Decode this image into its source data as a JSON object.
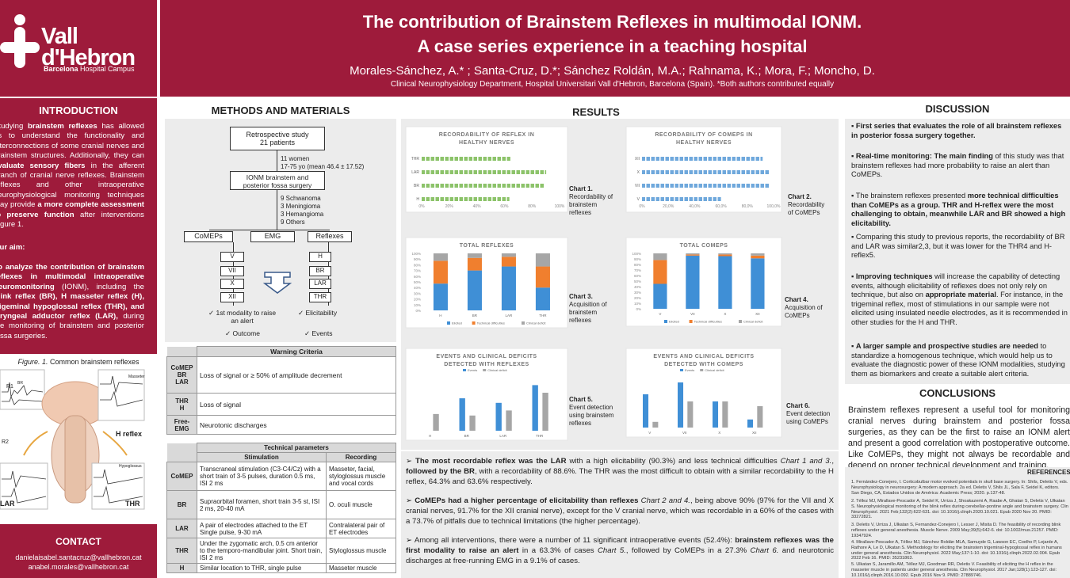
{
  "header": {
    "logo": {
      "line1": "Vall",
      "line2": "d'Hebron",
      "line3_bold": "Barcelona",
      "line3": " Hospital Campus"
    },
    "title_line1": "The contribution of Brainstem Reflexes in multimodal IONM.",
    "title_line2": "A case series experience in a teaching hospital",
    "authors": "Morales-Sánchez, A.* ; Santa-Cruz, D.*; Sánchez Roldán, M.A.; Rahnama, K.; Mora, F.; Moncho, D.",
    "affiliation": "Clinical Neurophysiology Department, Hospital Universitari Vall d'Hebron, Barcelona (Spain). *Both  authors contributed equally"
  },
  "intro": {
    "heading": "INTRODUCTION",
    "p1_a": "Studying ",
    "p1_b": "brainstem reflexes",
    "p1_c": " has allowed us to understand the functionality and interconnections of some cranial nerves and brainstem structures. Additionally, they can ",
    "p1_d": "evaluate sensory fibers",
    "p1_e": " in the afferent branch of cranial nerve reflexes. Brainstem reflexes and other intraoperative neurophysiological monitoring techniques may provide ",
    "p1_f": "a more complete assessment to preserve function",
    "p1_g": " after interventions Figure 1.",
    "aim_label": "Our aim:",
    "aim_a": "To analyze the contribution of brainstem reflexes in multimodal intraoperative neuromonitoring",
    "aim_b": " (IONM), including the ",
    "aim_c": "blink reflex (BR), H masseter reflex (H), trigeminal hypoglossal reflex (THR), and laryngeal adductor reflex (LAR),",
    "aim_d": " during the monitoring of brainstem and posterior fossa surgeries.",
    "fig_caption_a": "Figure. 1.",
    "fig_caption_b": " Common brainstem reflexes",
    "fig_labels": {
      "br": "BR",
      "h": "H reflex",
      "lar": "LAR",
      "thr": "THR",
      "r1": "R1",
      "r2": "R2",
      "masseter": "Masseter",
      "hypoglossus": "Hypoglossus"
    }
  },
  "contact": {
    "heading": "CONTACT",
    "email1": "danielaisabel.santacruz@vallhebron.cat",
    "email2": "anabel.morales@vallhebron.cat"
  },
  "methods": {
    "heading": "METHODS AND MATERIALS",
    "retro": "Retrospective study",
    "patients": "21 patients",
    "women": "11 women",
    "age": "17-75 yo (mean 46.4 ± 17.52)",
    "ionm": "IONM brainstem and",
    "ionm2": "posterior fossa surgery",
    "schwannoma": "9 Schwanoma",
    "meningioma": "3 Meningioma",
    "hemangioma": "3 Hemangioma",
    "others": "9 Others",
    "comeps": "CoMEPs",
    "emg": "EMG",
    "reflexes": "Reflexes",
    "nerves": [
      "V",
      "VII",
      "X",
      "XII"
    ],
    "reflex_list": [
      "H",
      "BR",
      "LAR",
      "THR"
    ],
    "bullet1": "✓ 1st modality to raise",
    "bullet1b": "an alert",
    "bullet2": "✓ Elicitability",
    "bullet3": "✓ Outcome",
    "bullet4": "✓ Events"
  },
  "warning_table": {
    "header": "Warning Criteria",
    "rows": [
      {
        "label": "CoMEP\nBR\nLAR",
        "label1": "CoMEP",
        "label2": "BR",
        "label3": "LAR",
        "text": "Loss of signal or ≥ 50% of amplitude decrement"
      },
      {
        "label1": "THR",
        "label2": "H",
        "text": "Loss of signal"
      },
      {
        "label1": "Free-",
        "label2": "EMG",
        "text": "Neurotonic discharges"
      }
    ]
  },
  "tech_table": {
    "header": "Technical parameters",
    "col_stim": "Stimulation",
    "col_rec": "Recording",
    "rows": [
      {
        "label": "CoMEP",
        "stim": "Transcraneal stimulation (C3-C4/Cz) with a short train of 3-5 pulses, duration 0.5 ms, ISI 2 ms",
        "rec": "Masseter, facial, styloglossus muscle and vocal cords"
      },
      {
        "label": "BR",
        "stim": "Supraorbital foramen, short train 3-5 st, ISI 2 ms, 20-40 mA",
        "rec": "O. oculi muscle"
      },
      {
        "label": "LAR",
        "stim": "A pair of electrodes attached to the ET Single pulse, 9-30 mA",
        "rec": "Contralateral pair of ET electrodes"
      },
      {
        "label": "THR",
        "stim": "Under the zygomatic arch, 0.5 cm anterior to the temporo-mandibular joint. Short train, ISI 2 ms",
        "rec": "Styloglossus muscle"
      },
      {
        "label": "H",
        "stim": "Similar location to THR, single pulse",
        "rec": "Masseter muscle"
      }
    ]
  },
  "results": {
    "heading": "RESULTS",
    "captions": {
      "c1": [
        "Chart 1.",
        "Recordability",
        "of reflex in",
        "healthy nerves"
      ],
      "c2": [
        "Chart 2.",
        "Recordability",
        "of CoMEPs"
      ],
      "c3": [
        "Chart 3.",
        "Acquisition of",
        "brainstem",
        "reflexes"
      ],
      "c4": [
        "Chart 4.",
        "Acquisition of",
        "CoMEPs"
      ],
      "c5": [
        "Chart 5.",
        "Event detection",
        "using brainstem",
        "reflexes"
      ],
      "c6": [
        "Chart 6.",
        "Event detection",
        "using CoMEPs"
      ]
    },
    "caption_fix": {
      "c1": [
        "Chart 1.",
        "Recordability of",
        "brainstem",
        "reflexes"
      ]
    },
    "para1_a": "The most recordable reflex was the LAR",
    "para1_b": " with a high elicitability (90.3%) and less technical difficulties ",
    "para1_c": "Chart 1 and 3.",
    "para1_d": ", ",
    "para1_e": "followed by the BR",
    "para1_f": ", with a recordability of 88.6%. The THR was the most difficult to obtain with a similar recordability to the H reflex, 64.3% and 63.6% respectively.",
    "para2_a": "CoMEPs had a higher percentage of elicitability than reflexes",
    "para2_b": " Chart 2 and 4.",
    "para2_c": ", being above 90% (97% for the VII and X cranial nerves, 91.7% for the XII cranial nerve), except for the V cranial nerve, which was recordable in a 60% of the cases with a 73.7% of pitfalls due to technical limitations (the higher percentage).",
    "para3_a": "Among all interventions, there were a number of 11 significant intraoperative events (52.4%): ",
    "para3_b": "brainstem reflexes was the first modality to raise an alert",
    "para3_c": " in a 63.3% of cases ",
    "para3_d": "Chart 5.",
    "para3_e": ", followed by CoMEPs in a 27.3% ",
    "para3_f": "Chart 6.",
    "para3_g": " and neurotonic discharges at free-running EMG in a 9.1% of cases."
  },
  "chart_data": [
    {
      "type": "bar",
      "title": "RECORDABILITY OF REFLEX IN HEALTHY NERVES",
      "orientation": "horizontal",
      "categories": [
        "THR",
        "LAR",
        "BR",
        "H"
      ],
      "values": [
        64.3,
        90.3,
        88.6,
        63.6
      ],
      "xlim": [
        0,
        100
      ],
      "ticks": [
        "0%",
        "20%",
        "40%",
        "60%",
        "80%",
        "100%"
      ],
      "color": "#8cc36a"
    },
    {
      "type": "bar",
      "title": "RECORDABILITY OF COMEPS IN HEALTHY NERVES",
      "orientation": "horizontal",
      "categories": [
        "XII",
        "X",
        "VII",
        "V"
      ],
      "values": [
        91.7,
        97,
        97,
        60
      ],
      "xlim": [
        0,
        100
      ],
      "ticks": [
        "0%",
        "20,0%",
        "40,0%",
        "60,0%",
        "80,0%",
        "100,0%"
      ],
      "color": "#6fa8dc"
    },
    {
      "type": "bar",
      "title": "TOTAL REFLEXES",
      "stacked": true,
      "categories": [
        "H",
        "BR",
        "LAR",
        "THR"
      ],
      "series": [
        {
          "name": "Elicited",
          "values": [
            47,
            70,
            77,
            40
          ],
          "color": "#3f8fd6"
        },
        {
          "name": "Technical difficulties",
          "values": [
            40,
            22,
            17,
            37
          ],
          "color": "#f07f2e"
        },
        {
          "name": "Clinical deficit",
          "values": [
            13,
            8,
            6,
            23
          ],
          "color": "#a6a6a6"
        }
      ],
      "yticks": [
        "0%",
        "10%",
        "20%",
        "30%",
        "40%",
        "50%",
        "60%",
        "70%",
        "80%",
        "90%",
        "100%"
      ]
    },
    {
      "type": "bar",
      "title": "TOTAL COMEPS",
      "stacked": true,
      "categories": [
        "V",
        "VII",
        "X",
        "XII"
      ],
      "series": [
        {
          "name": "Elicited",
          "values": [
            45,
            96,
            95,
            91
          ],
          "color": "#3f8fd6"
        },
        {
          "name": "Technical difficulties",
          "values": [
            43,
            2,
            3,
            5
          ],
          "color": "#f07f2e"
        },
        {
          "name": "Clinical deficit",
          "values": [
            12,
            2,
            2,
            4
          ],
          "color": "#a6a6a6"
        }
      ],
      "yticks": [
        "0%",
        "10%",
        "20%",
        "30%",
        "40%",
        "50%",
        "60%",
        "70%",
        "80%",
        "90%",
        "100%"
      ]
    },
    {
      "type": "bar",
      "title": "EVENTS AND CLINICAL DEFICITS DETECTED WITH REFLEXES",
      "categories": [
        "H",
        "BR",
        "LAR",
        "THR"
      ],
      "series": [
        {
          "name": "Events",
          "values": [
            0,
            64,
            55,
            90
          ],
          "color": "#3f8fd6"
        },
        {
          "name": "Clinical deficit",
          "values": [
            33,
            30,
            40,
            75
          ],
          "color": "#a6a6a6"
        }
      ]
    },
    {
      "type": "bar",
      "title": "EVENTS AND CLINICAL DEFICITS DETECTED WITH COMEPS",
      "categories": [
        "V",
        "VII",
        "X",
        "XII"
      ],
      "series": [
        {
          "name": "Events",
          "values": [
            70,
            95,
            55,
            17
          ],
          "color": "#3f8fd6"
        },
        {
          "name": "Clinical deficit",
          "values": [
            12,
            55,
            55,
            45
          ],
          "color": "#a6a6a6"
        }
      ]
    }
  ],
  "discussion": {
    "heading": "DISCUSSION",
    "b1": "First series that evaluates the role of all brainstem reflexes in posterior fossa surgery  together.",
    "b2_a": "Real-time monitoring: The main finding",
    "b2_b": " of this study was that brainstem reflexes had more probability to raise an alert than CoMEPs.",
    "b3_a": "The brainstem reflexes presented ",
    "b3_b": "more technical difficulties than CoMEPs as a group. THR and H-reflex were the most challenging to obtain,",
    "b3_c": " meanwhile LAR and BR showed a high elicitability.",
    "b4": "Comparing this study to previous reports, the recordability of BR and LAR was similar2,3, but it was lower for the THR4 and H-reflex5.",
    "b5_a": "Improving techniques",
    "b5_b": " will increase the capability of detecting events, although elicitability of reflexes does not only rely on technique, but also on ",
    "b5_c": "appropriate material",
    "b5_d": ". For instance, in the trigeminal reflex, most of stimulations in our sample were not elicited using insulated needle electrodes, as it is recommended in other studies for the H and THR.",
    "b6_a": "A larger sample and prospective studies are needed",
    "b6_b": " to standardize a homogenous technique, which would help us to evaluate the diagnostic power of these IONM modalities, studying them as biomarkers and create a suitable alert criteria."
  },
  "conclusions": {
    "heading": "CONCLUSIONS",
    "text": "Brainstem reflexes represent a useful tool for monitoring cranial nerves during brainstem and posterior fossa surgeries, as they can be the first to raise an IONM alert and present a good correlation with postoperative outcome. Like CoMEPs, they might not always be recordable and depend on proper technical development and training."
  },
  "references": {
    "heading": "REFERENCES",
    "items": [
      "1.   Fernández-Conejero, I. Corticobulbar motor evoked potentials in skull base surgery. In: Shils, Deletis V, eds. Neurophysiology in neurosurgery: A modern approach. 2a ed. Deletis V, Shils JL, Sala F, Seidel K, editors. San Diego, CA, Estados Unidos de América: Academic Press; 2020. p.137-48.",
      "2.   Téllez MJ, Mirallave-Pescador A, Seidel K, Urriza J, Shoakazemi A, Raabe A, Ghatan S, Deletis V, Ulkatan S. Neurophysiological monitoring of the blink reflex during cerebellar-pontine angle and brainstem surgery. Clin Neurophysiol. 2021 Feb;132(2):622-631. doi: 10.1016/j.clinph.2020.10.021. Epub 2020 Nov 20. PMID: 33272821.",
      "3.   Deletis V, Urriza J, Ulkatan S, Fernandez-Conejero I, Lesser J, Misita D. The feasibility of recording blink reflexes under general anesthesia. Muscle Nerve. 2009 May;39(5):642-6. doi: 10.1002/mus.21257. PMID: 19347924.",
      "4.   Mirallave-Pescador A, Téllez MJ, Sánchez Roldán MLA, Samuyde G, Lawson EC, Coelho P, Lejarde A, Rathore A, Le D, Ulkatan S. Methodology for eliciting the brainstem trigeminal-hypoglossal reflex in humans under general anesthesia. Clin Neurophysiol. 2022 May;137:1-10. doi: 10.1016/j.clinph.2022.02.004. Epub 2022 Feb 16. PMID: 35231863.",
      "5.   Ulkatan S, Jaramillo AM, Téllez MJ, Goodman RR, Deletis V. Feasibility of eliciting the H reflex in the masseter muscle in patients under general anesthesia. Clin Neurophysiol. 2017 Jan;128(1):123-127. doi: 10.1016/j.clinph.2016.10.092. Epub 2016 Nov 9. PMID: 27889746."
    ]
  },
  "colors": {
    "brand": "#9e1b3b",
    "panel": "#ececec",
    "elicited": "#3f8fd6",
    "technical": "#f07f2e",
    "deficit": "#a6a6a6"
  }
}
